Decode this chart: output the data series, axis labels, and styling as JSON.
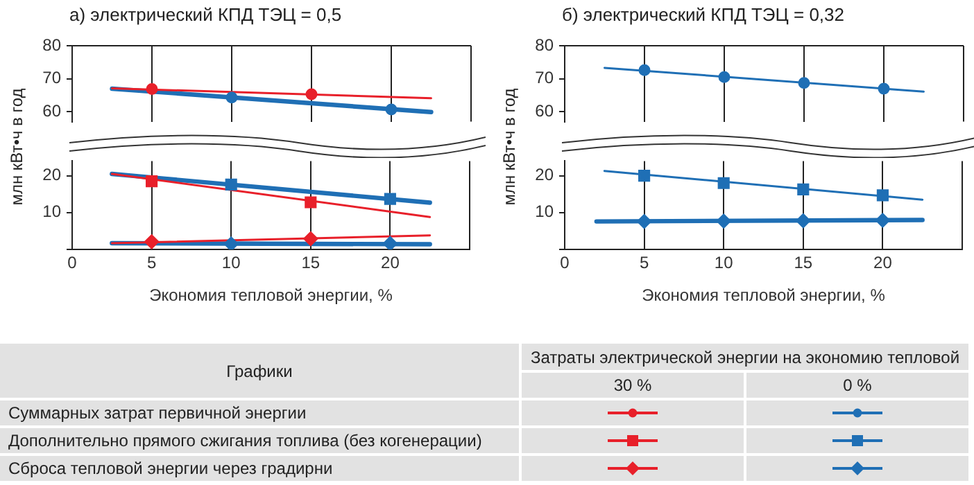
{
  "chart_data": [
    {
      "type": "scatter",
      "title": "а) электрический КПД ТЭЦ = 0,5",
      "ylabel": "млн кВт•ч в год",
      "xlim": [
        0,
        25
      ],
      "xticks": [
        0,
        5,
        10,
        15,
        20
      ],
      "ylim": [
        57,
        80
      ],
      "yticks": [
        60,
        70,
        80
      ],
      "grid": "x",
      "tick_labels": "y",
      "series": [
        {
          "type": "scatter",
          "color": "#e8202a",
          "marker": "circle",
          "x": [
            5,
            15
          ],
          "values": [
            66.9,
            65.3
          ]
        },
        {
          "type": "line",
          "color": "#e8202a",
          "marker": "none",
          "x": [
            2.5,
            22.5
          ],
          "values": [
            67.1,
            64.1
          ]
        },
        {
          "type": "scatter",
          "color": "#1f6fb5",
          "marker": "circle",
          "x": [
            10,
            20
          ],
          "values": [
            64.3,
            60.7
          ]
        },
        {
          "type": "line",
          "color": "#1f6fb5",
          "marker": "none",
          "x": [
            2.5,
            22.5
          ],
          "values": [
            67.0,
            59.9
          ]
        }
      ]
    },
    {
      "type": "scatter",
      "xlabel": "Экономия тепловой энергии, %",
      "xlim": [
        0,
        25
      ],
      "xticks": [
        0,
        5,
        10,
        15,
        20
      ],
      "ylim": [
        0,
        24
      ],
      "yticks": [
        {
          "value": 0,
          "label": null
        },
        10,
        20
      ],
      "grid": "x",
      "series": [
        {
          "type": "scatter",
          "color": "#e8202a",
          "marker": "square",
          "x": [
            5,
            15
          ],
          "values": [
            18.5,
            12.8
          ]
        },
        {
          "type": "line",
          "color": "#e8202a",
          "marker": "none",
          "x": [
            2.5,
            22.5
          ],
          "values": [
            20.5,
            8.8
          ]
        },
        {
          "type": "scatter",
          "color": "#1f6fb5",
          "marker": "square",
          "x": [
            10,
            20
          ],
          "values": [
            17.6,
            13.7
          ]
        },
        {
          "type": "line",
          "color": "#1f6fb5",
          "marker": "none",
          "x": [
            2.5,
            22.5
          ],
          "values": [
            20.5,
            12.7
          ]
        },
        {
          "type": "scatter",
          "color": "#e8202a",
          "marker": "diamond",
          "x": [
            5,
            15
          ],
          "values": [
            2.1,
            2.9
          ]
        },
        {
          "type": "line",
          "color": "#e8202a",
          "marker": "none",
          "x": [
            2.5,
            22.5
          ],
          "values": [
            1.7,
            3.8
          ]
        },
        {
          "type": "scatter",
          "color": "#1f6fb5",
          "marker": "diamond",
          "x": [
            10,
            20
          ],
          "values": [
            1.5,
            1.6
          ]
        },
        {
          "type": "line",
          "color": "#1f6fb5",
          "marker": "none",
          "x": [
            2.5,
            22.5
          ],
          "values": [
            1.7,
            1.4
          ]
        }
      ]
    },
    {
      "type": "scatter",
      "title": "б) электрический КПД ТЭЦ = 0,32",
      "ylabel": "млн кВт•ч в год",
      "xlim": [
        0,
        25
      ],
      "xticks": [
        0,
        5,
        10,
        15,
        20
      ],
      "ylim": [
        57,
        80
      ],
      "yticks": [
        60,
        70,
        80
      ],
      "grid": "x",
      "tick_labels": "y",
      "series": [
        {
          "type": "scatter",
          "color": "#1f6fb5",
          "marker": "circle",
          "x": [
            5,
            10,
            15,
            20
          ],
          "values": [
            72.6,
            70.5,
            68.7,
            67.0
          ]
        },
        {
          "type": "line",
          "color": "#1f6fb5",
          "marker": "none",
          "x": [
            2.5,
            22.5
          ],
          "values": [
            73.3,
            66.1
          ]
        }
      ]
    },
    {
      "type": "scatter",
      "xlabel": "Экономия тепловой энергии, %",
      "xlim": [
        0,
        25
      ],
      "xticks": [
        0,
        5,
        10,
        15,
        20
      ],
      "ylim": [
        0,
        24
      ],
      "yticks": [
        {
          "value": 0,
          "label": null
        },
        10,
        20
      ],
      "grid": "x",
      "series": [
        {
          "type": "scatter",
          "color": "#1f6fb5",
          "marker": "square",
          "x": [
            5,
            10,
            15,
            20
          ],
          "values": [
            20.0,
            18.0,
            16.3,
            14.7
          ]
        },
        {
          "type": "line",
          "color": "#1f6fb5",
          "marker": "none",
          "x": [
            2.5,
            22.5
          ],
          "values": [
            21.3,
            13.5
          ]
        },
        {
          "type": "scatter",
          "color": "#1f6fb5",
          "marker": "diamond",
          "x": [
            5,
            10,
            15,
            20
          ],
          "values": [
            7.6,
            7.7,
            7.8,
            7.9
          ]
        },
        {
          "type": "line",
          "color": "#1f6fb5",
          "marker": "none",
          "x": [
            2,
            22.5
          ],
          "values": [
            7.6,
            8.0
          ]
        }
      ]
    },
    {
      "type": "other",
      "annotations": [
        "Графики",
        "Затраты электрической энергии на экономию тепловой",
        "30 %",
        "0 %",
        "Суммарных затрат первичной энергии",
        "Дополнительно прямого сжигания топлива (без когенерации)",
        "Сброса тепловой энергии через градирни"
      ]
    }
  ]
}
